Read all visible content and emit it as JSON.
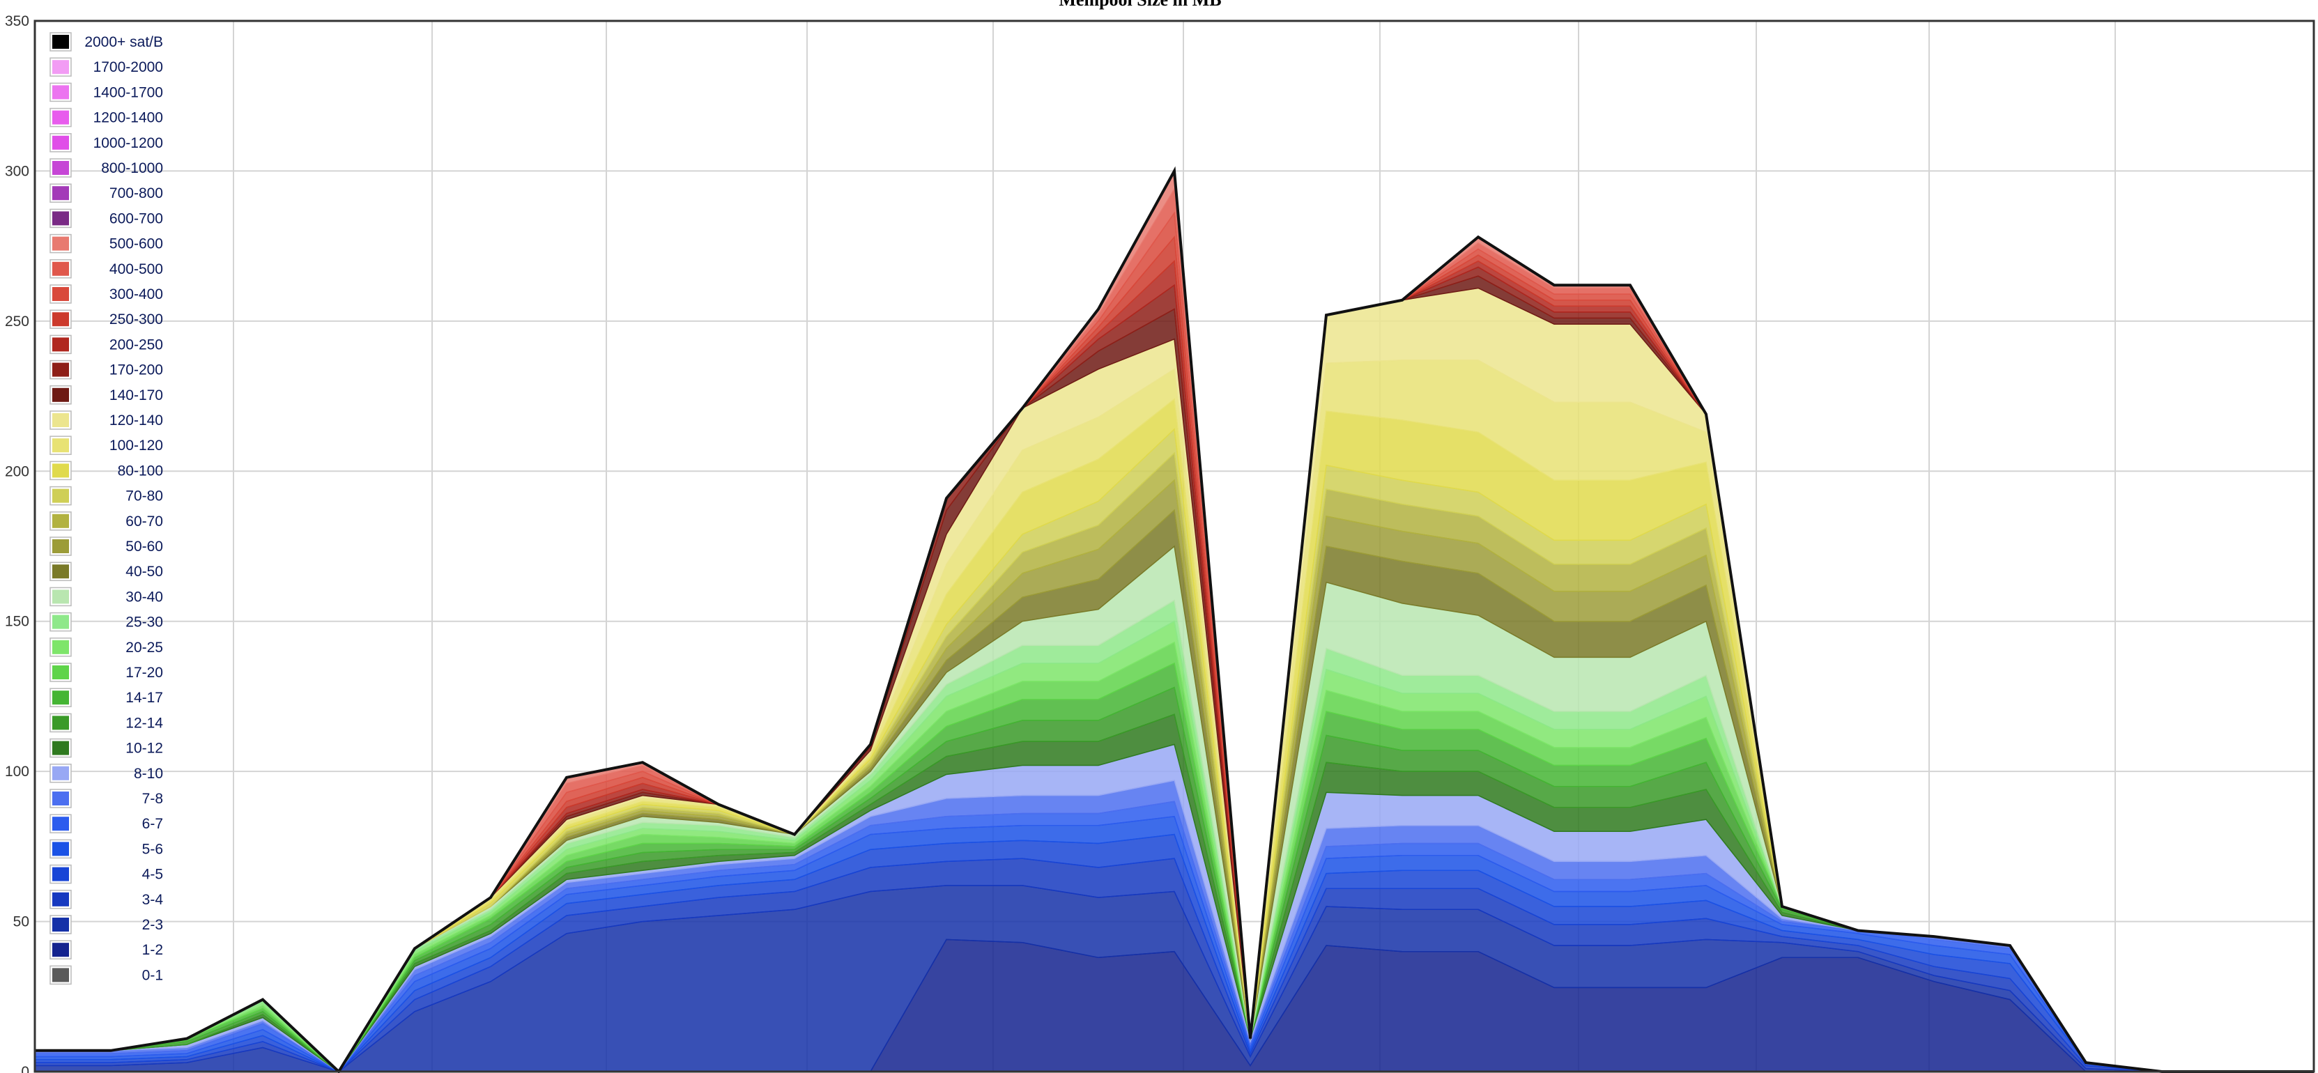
{
  "chart_data": {
    "type": "area",
    "title": "Mempool Size in MB",
    "xlabel": "",
    "ylabel": "",
    "ylim": [
      0,
      350
    ],
    "yticks": [
      0,
      50,
      100,
      150,
      200,
      250,
      300,
      350
    ],
    "grid": true,
    "legend_position": "top-left",
    "stacked": true,
    "x_points": 31,
    "series": [
      {
        "name": "0-1",
        "color": "#5a5a5a",
        "values": [
          0,
          0,
          0,
          0,
          0,
          0,
          0,
          0,
          0,
          0,
          0,
          0,
          0,
          0,
          0,
          0,
          0,
          0,
          0,
          0,
          0,
          0,
          0,
          0,
          0,
          0,
          0,
          0,
          0,
          0,
          0
        ]
      },
      {
        "name": "1-2",
        "color": "#14238f",
        "values": [
          0,
          0,
          0,
          0,
          0,
          0,
          0,
          0,
          0,
          0,
          0,
          0,
          44,
          43,
          38,
          40,
          2,
          42,
          40,
          40,
          28,
          28,
          28,
          38,
          38,
          30,
          24,
          0,
          0,
          0,
          0
        ]
      },
      {
        "name": "2-3",
        "color": "#1531a8",
        "values": [
          2,
          2,
          3,
          8,
          0,
          20,
          30,
          46,
          50,
          52,
          54,
          60,
          18,
          19,
          20,
          20,
          3,
          13,
          14,
          14,
          14,
          14,
          16,
          5,
          2,
          2,
          3,
          1,
          0,
          0,
          0
        ]
      },
      {
        "name": "3-4",
        "color": "#1639c0",
        "values": [
          1,
          1,
          1,
          2,
          0,
          4,
          5,
          6,
          5,
          6,
          6,
          8,
          8,
          9,
          10,
          11,
          1,
          6,
          7,
          7,
          7,
          7,
          7,
          2,
          2,
          3,
          4,
          1,
          0,
          0,
          0
        ]
      },
      {
        "name": "4-5",
        "color": "#1845d6",
        "values": [
          1,
          1,
          1,
          2,
          0,
          3,
          3,
          4,
          4,
          4,
          4,
          6,
          6,
          6,
          8,
          8,
          1,
          5,
          6,
          6,
          6,
          6,
          6,
          2,
          2,
          4,
          5,
          1,
          0,
          0,
          0
        ]
      },
      {
        "name": "5-6",
        "color": "#1b52e6",
        "values": [
          1,
          1,
          1,
          2,
          0,
          3,
          3,
          3,
          3,
          3,
          3,
          5,
          5,
          5,
          6,
          6,
          1,
          5,
          5,
          5,
          5,
          5,
          5,
          2,
          2,
          3,
          3,
          0,
          0,
          0,
          0
        ]
      },
      {
        "name": "6-7",
        "color": "#2c5cee",
        "values": [
          1,
          1,
          1,
          2,
          0,
          2,
          2,
          2,
          2,
          2,
          2,
          3,
          4,
          4,
          4,
          5,
          1,
          4,
          4,
          4,
          4,
          4,
          4,
          1,
          1,
          2,
          2,
          0,
          0,
          0,
          0
        ]
      },
      {
        "name": "7-8",
        "color": "#4c6ff0",
        "values": [
          1,
          1,
          1,
          1,
          0,
          2,
          2,
          2,
          2,
          2,
          2,
          3,
          6,
          6,
          6,
          7,
          1,
          6,
          6,
          6,
          6,
          6,
          6,
          1,
          0,
          1,
          1,
          0,
          0,
          0,
          0
        ]
      },
      {
        "name": "8-10",
        "color": "#98a8f4",
        "values": [
          0,
          0,
          1,
          1,
          0,
          1,
          1,
          1,
          1,
          1,
          1,
          2,
          8,
          10,
          10,
          12,
          1,
          12,
          10,
          10,
          10,
          10,
          12,
          1,
          0,
          0,
          0,
          0,
          0,
          0,
          0
        ]
      },
      {
        "name": "10-12",
        "color": "#2f7a1f",
        "values": [
          0,
          0,
          0,
          1,
          0,
          1,
          1,
          2,
          3,
          2,
          1,
          2,
          6,
          8,
          8,
          10,
          0,
          10,
          8,
          8,
          8,
          8,
          10,
          1,
          0,
          0,
          0,
          0,
          0,
          0,
          0
        ]
      },
      {
        "name": "12-14",
        "color": "#3a9a28",
        "values": [
          0,
          0,
          1,
          1,
          0,
          1,
          2,
          2,
          3,
          2,
          1,
          2,
          5,
          7,
          7,
          9,
          0,
          9,
          7,
          7,
          7,
          7,
          9,
          1,
          0,
          0,
          0,
          0,
          0,
          0,
          0
        ]
      },
      {
        "name": "14-17",
        "color": "#45b534",
        "values": [
          0,
          0,
          1,
          1,
          0,
          1,
          2,
          2,
          3,
          2,
          1,
          2,
          5,
          7,
          7,
          8,
          0,
          8,
          7,
          7,
          7,
          7,
          8,
          1,
          0,
          0,
          0,
          0,
          0,
          0,
          0
        ]
      },
      {
        "name": "17-20",
        "color": "#5fd44a",
        "values": [
          0,
          0,
          0,
          1,
          0,
          1,
          1,
          2,
          3,
          2,
          1,
          2,
          5,
          6,
          6,
          7,
          0,
          7,
          6,
          6,
          6,
          6,
          7,
          0,
          0,
          0,
          0,
          0,
          0,
          0,
          0
        ]
      },
      {
        "name": "20-25",
        "color": "#7ee56a",
        "values": [
          0,
          0,
          0,
          1,
          0,
          1,
          1,
          2,
          2,
          2,
          1,
          2,
          5,
          6,
          6,
          7,
          0,
          7,
          6,
          6,
          6,
          6,
          7,
          0,
          0,
          0,
          0,
          0,
          0,
          0,
          0
        ]
      },
      {
        "name": "25-30",
        "color": "#8ee88a",
        "values": [
          0,
          0,
          0,
          1,
          0,
          1,
          1,
          2,
          2,
          2,
          1,
          2,
          4,
          6,
          6,
          7,
          0,
          7,
          6,
          6,
          6,
          6,
          7,
          0,
          0,
          0,
          0,
          0,
          0,
          0,
          0
        ]
      },
      {
        "name": "30-40",
        "color": "#b9e6b0",
        "values": [
          0,
          0,
          0,
          0,
          0,
          0,
          1,
          1,
          2,
          1,
          1,
          1,
          4,
          8,
          12,
          18,
          0,
          22,
          24,
          20,
          18,
          18,
          18,
          0,
          0,
          0,
          0,
          0,
          0,
          0,
          0
        ]
      },
      {
        "name": "40-50",
        "color": "#7a7a28",
        "values": [
          0,
          0,
          0,
          0,
          0,
          0,
          0,
          1,
          1,
          1,
          0,
          1,
          4,
          8,
          10,
          12,
          0,
          12,
          14,
          14,
          12,
          12,
          12,
          0,
          0,
          0,
          0,
          0,
          0,
          0,
          0
        ]
      },
      {
        "name": "50-60",
        "color": "#9c9c38",
        "values": [
          0,
          0,
          0,
          0,
          0,
          0,
          0,
          1,
          1,
          1,
          0,
          1,
          4,
          8,
          10,
          10,
          0,
          10,
          10,
          10,
          10,
          10,
          10,
          0,
          0,
          0,
          0,
          0,
          0,
          0,
          0
        ]
      },
      {
        "name": "60-70",
        "color": "#b2b240",
        "values": [
          0,
          0,
          0,
          0,
          0,
          0,
          0,
          1,
          1,
          1,
          0,
          1,
          4,
          7,
          8,
          9,
          0,
          9,
          9,
          9,
          9,
          9,
          9,
          0,
          0,
          0,
          0,
          0,
          0,
          0,
          0
        ]
      },
      {
        "name": "70-80",
        "color": "#cfcf56",
        "values": [
          0,
          0,
          0,
          0,
          0,
          0,
          1,
          1,
          1,
          1,
          0,
          1,
          4,
          6,
          8,
          8,
          0,
          8,
          8,
          8,
          8,
          8,
          8,
          0,
          0,
          0,
          0,
          0,
          0,
          0,
          0
        ]
      },
      {
        "name": "80-100",
        "color": "#e0da4c",
        "values": [
          0,
          0,
          0,
          0,
          0,
          0,
          1,
          1,
          1,
          1,
          0,
          1,
          10,
          14,
          14,
          10,
          0,
          18,
          20,
          20,
          20,
          20,
          14,
          0,
          0,
          0,
          0,
          0,
          0,
          0,
          0
        ]
      },
      {
        "name": "100-120",
        "color": "#e8e274",
        "values": [
          0,
          0,
          0,
          0,
          0,
          0,
          1,
          1,
          1,
          1,
          0,
          1,
          10,
          14,
          14,
          10,
          0,
          16,
          20,
          24,
          26,
          26,
          10,
          0,
          0,
          0,
          0,
          0,
          0,
          0,
          0
        ]
      },
      {
        "name": "120-140",
        "color": "#ece58e",
        "values": [
          0,
          0,
          0,
          0,
          0,
          0,
          0,
          1,
          1,
          0,
          0,
          1,
          10,
          14,
          16,
          10,
          0,
          16,
          20,
          24,
          26,
          26,
          6,
          0,
          0,
          0,
          0,
          0,
          0,
          0,
          0
        ]
      },
      {
        "name": "140-170",
        "color": "#6e1a14",
        "values": [
          0,
          0,
          0,
          0,
          0,
          0,
          0,
          1,
          1,
          0,
          0,
          1,
          8,
          0,
          6,
          10,
          0,
          0,
          0,
          4,
          2,
          2,
          0,
          0,
          0,
          0,
          0,
          0,
          0,
          0,
          0
        ]
      },
      {
        "name": "170-200",
        "color": "#8e1f18",
        "values": [
          0,
          0,
          0,
          0,
          0,
          0,
          0,
          1,
          1,
          0,
          0,
          1,
          4,
          0,
          4,
          8,
          0,
          0,
          0,
          3,
          2,
          2,
          0,
          0,
          0,
          0,
          0,
          0,
          0,
          0,
          0
        ]
      },
      {
        "name": "200-250",
        "color": "#b0271f",
        "values": [
          0,
          0,
          0,
          0,
          0,
          0,
          0,
          2,
          2,
          0,
          0,
          0,
          0,
          0,
          2,
          8,
          0,
          0,
          0,
          2,
          2,
          2,
          0,
          0,
          0,
          0,
          0,
          0,
          0,
          0,
          0
        ]
      },
      {
        "name": "250-300",
        "color": "#cc3a2c",
        "values": [
          0,
          0,
          0,
          0,
          0,
          0,
          0,
          2,
          2,
          0,
          0,
          0,
          0,
          0,
          2,
          8,
          0,
          0,
          0,
          2,
          2,
          2,
          0,
          0,
          0,
          0,
          0,
          0,
          0,
          0,
          0
        ]
      },
      {
        "name": "300-400",
        "color": "#d9493b",
        "values": [
          0,
          0,
          0,
          0,
          0,
          0,
          0,
          3,
          2,
          0,
          0,
          0,
          0,
          0,
          2,
          8,
          0,
          0,
          0,
          2,
          2,
          2,
          0,
          0,
          0,
          0,
          0,
          0,
          0,
          0,
          0
        ]
      },
      {
        "name": "400-500",
        "color": "#e0584c",
        "values": [
          0,
          0,
          0,
          0,
          0,
          0,
          0,
          3,
          2,
          0,
          0,
          0,
          0,
          0,
          2,
          8,
          0,
          0,
          0,
          2,
          2,
          2,
          0,
          0,
          0,
          0,
          0,
          0,
          0,
          0,
          0
        ]
      },
      {
        "name": "500-600",
        "color": "#e87a70",
        "values": [
          0,
          0,
          0,
          0,
          0,
          0,
          0,
          2,
          1,
          0,
          0,
          0,
          0,
          0,
          2,
          6,
          0,
          0,
          0,
          2,
          1,
          1,
          0,
          0,
          0,
          0,
          0,
          0,
          0,
          0,
          0
        ]
      },
      {
        "name": "600-700",
        "color": "#7a2a86",
        "values": [
          0,
          0,
          0,
          0,
          0,
          0,
          0,
          0,
          0,
          0,
          0,
          0,
          0,
          0,
          0,
          0,
          0,
          0,
          0,
          0,
          0,
          0,
          0,
          0,
          0,
          0,
          0,
          0,
          0,
          0,
          0
        ]
      },
      {
        "name": "700-800",
        "color": "#a33ab8",
        "values": [
          0,
          0,
          0,
          0,
          0,
          0,
          0,
          0,
          0,
          0,
          0,
          0,
          0,
          0,
          0,
          0,
          0,
          0,
          0,
          0,
          0,
          0,
          0,
          0,
          0,
          0,
          0,
          0,
          0,
          0,
          0
        ]
      },
      {
        "name": "800-1000",
        "color": "#c646d6",
        "values": [
          0,
          0,
          0,
          0,
          0,
          0,
          0,
          0,
          0,
          0,
          0,
          0,
          0,
          0,
          0,
          0,
          0,
          0,
          0,
          0,
          0,
          0,
          0,
          0,
          0,
          0,
          0,
          0,
          0,
          0,
          0
        ]
      },
      {
        "name": "1000-1200",
        "color": "#e04ee8",
        "values": [
          0,
          0,
          0,
          0,
          0,
          0,
          0,
          0,
          0,
          0,
          0,
          0,
          0,
          0,
          0,
          0,
          0,
          0,
          0,
          0,
          0,
          0,
          0,
          0,
          0,
          0,
          0,
          0,
          0,
          0,
          0
        ]
      },
      {
        "name": "1200-1400",
        "color": "#e85ced",
        "values": [
          0,
          0,
          0,
          0,
          0,
          0,
          0,
          0,
          0,
          0,
          0,
          0,
          0,
          0,
          0,
          0,
          0,
          0,
          0,
          0,
          0,
          0,
          0,
          0,
          0,
          0,
          0,
          0,
          0,
          0,
          0
        ]
      },
      {
        "name": "1400-1700",
        "color": "#ec74f0",
        "values": [
          0,
          0,
          0,
          0,
          0,
          0,
          0,
          0,
          0,
          0,
          0,
          0,
          0,
          0,
          0,
          0,
          0,
          0,
          0,
          0,
          0,
          0,
          0,
          0,
          0,
          0,
          0,
          0,
          0,
          0,
          0
        ]
      },
      {
        "name": "1700-2000",
        "color": "#f29cf4",
        "values": [
          0,
          0,
          0,
          0,
          0,
          0,
          0,
          0,
          0,
          0,
          0,
          0,
          0,
          0,
          0,
          0,
          0,
          0,
          0,
          0,
          0,
          0,
          0,
          0,
          0,
          0,
          0,
          0,
          0,
          0,
          0
        ]
      },
      {
        "name": "2000+ sat/B",
        "color": "#000000",
        "values": [
          0,
          0,
          0,
          0,
          0,
          0,
          0,
          0,
          0,
          0,
          0,
          0,
          0,
          0,
          0,
          0,
          0,
          0,
          0,
          0,
          0,
          0,
          0,
          0,
          0,
          0,
          0,
          0,
          0,
          0,
          0
        ]
      }
    ],
    "colors": {
      "grid": "#d4d4d4",
      "frame": "#333333",
      "outline": "#111111"
    }
  }
}
